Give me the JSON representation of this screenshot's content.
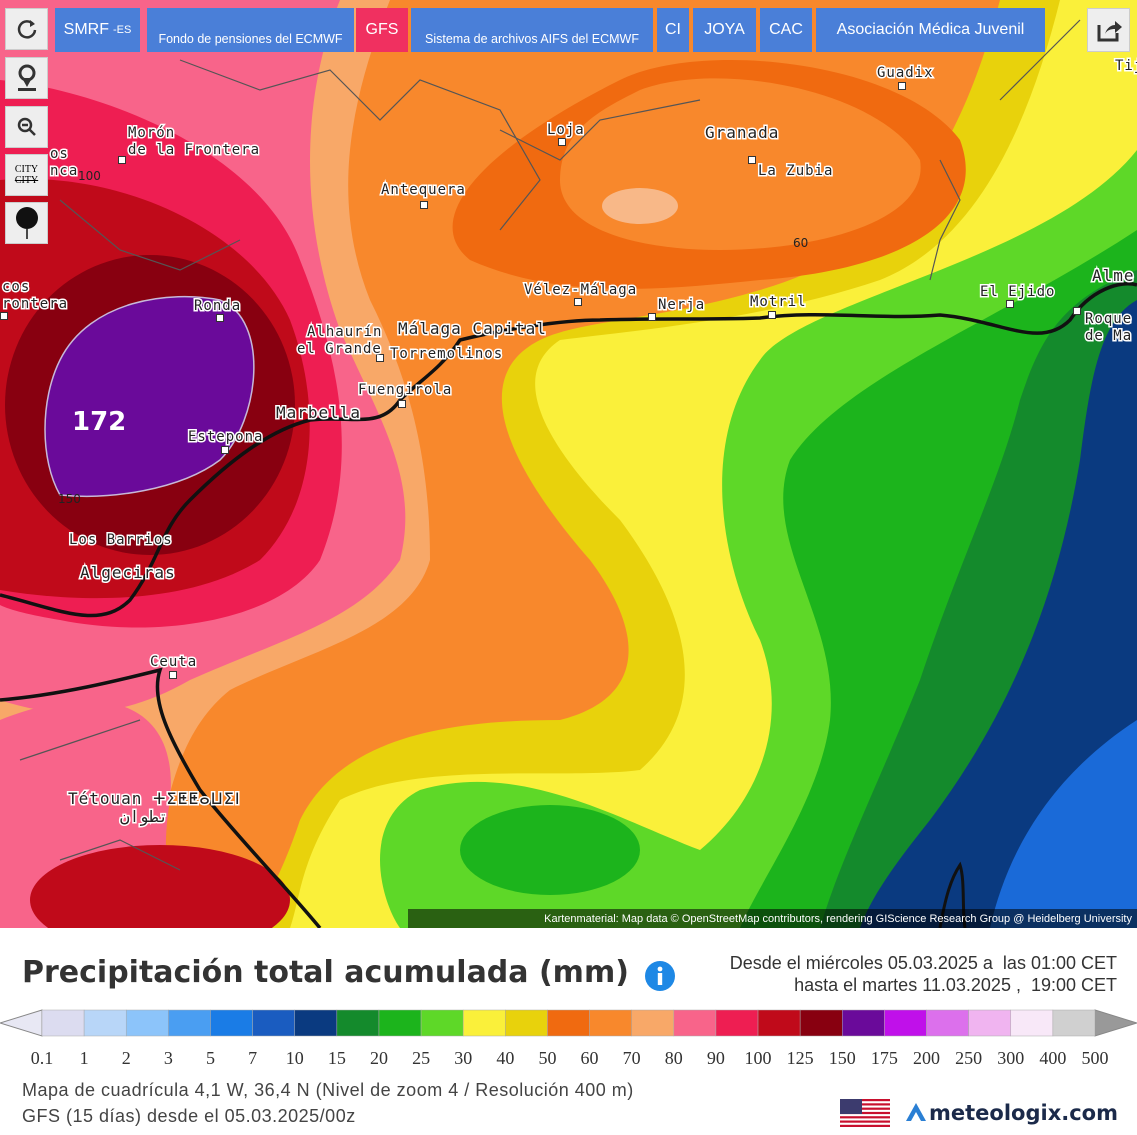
{
  "toolbar": {
    "buttons": [
      {
        "label": "SMRF",
        "suffix": "-ES"
      },
      {
        "label": "Fondo de pensiones del ECMWF"
      },
      {
        "label": "GFS"
      },
      {
        "label": "Sistema de archivos AIFS del ECMWF"
      },
      {
        "label": "CI"
      },
      {
        "label": "JOYA"
      },
      {
        "label": "CAC"
      },
      {
        "label": "Asociación Médica Juvenil"
      }
    ],
    "city_label": "CITY",
    "city_label_struck": "CITY"
  },
  "map": {
    "places": [
      "Guadix",
      "Loja",
      "Granada",
      "La Zubia",
      "Morón",
      "de la Frontera",
      "Antequera",
      "Vélez-Málaga",
      "Nerja",
      "Motril",
      "El Ejido",
      "Alme",
      "Roque",
      "de Ma",
      "Tij",
      "Ronda",
      "Alhaurín",
      "el Grande",
      "Málaga Capital",
      "Torremolinos",
      "Fuengirola",
      "Marbella",
      "Estepona",
      "Los Barrios",
      "Algeciras",
      "Ceuta",
      "Tétouan ⵜⵉⵟⵟⴰⵡⵉⵏ",
      "تطوان",
      "cos",
      "rontera",
      "os",
      "nca"
    ],
    "contour_labels": [
      "100",
      "60",
      "150"
    ],
    "max_value": "172",
    "attribution": "Kartenmaterial: Map data © OpenStreetMap contributors, rendering GIScience Research Group @ Heidelberg University"
  },
  "legend": {
    "title": "Precipitación total acumulada (mm)",
    "period": [
      "Desde el miércoles 05.03.2025 a  las 01:00 CET",
      "hasta el martes 11.03.2025 ,  19:00 CET"
    ],
    "low_color": "#e8e8f4",
    "high_color": "#999999",
    "colors": [
      "#dcdcf0",
      "#b8d6f8",
      "#8cc4fa",
      "#4a9ef2",
      "#1a7ce6",
      "#1a5cc0",
      "#0a3a80",
      "#148a2c",
      "#1cb41c",
      "#5ed828",
      "#faf03a",
      "#e8d20c",
      "#f06a10",
      "#f8882c",
      "#f8a868",
      "#f8648a",
      "#ee1e52",
      "#c00a1a",
      "#880010",
      "#6a0a9a",
      "#c010ea",
      "#dc70ec",
      "#f0b4f0",
      "#f8e8f8",
      "#d0d0d0"
    ],
    "ticks": [
      "0.1",
      "1",
      "2",
      "3",
      "5",
      "7",
      "10",
      "15",
      "20",
      "25",
      "30",
      "40",
      "50",
      "60",
      "70",
      "80",
      "90",
      "100",
      "125",
      "150",
      "175",
      "200",
      "250",
      "300",
      "400",
      "500"
    ],
    "grid_info": "Mapa de cuadrícula 4,1 W, 36,4 N (Nivel de zoom 4 / Resolución 400 m)",
    "model_info": "GFS (15 días) desde el 05.03.2025/00z"
  },
  "footer": {
    "brand": "meteologix.com"
  }
}
